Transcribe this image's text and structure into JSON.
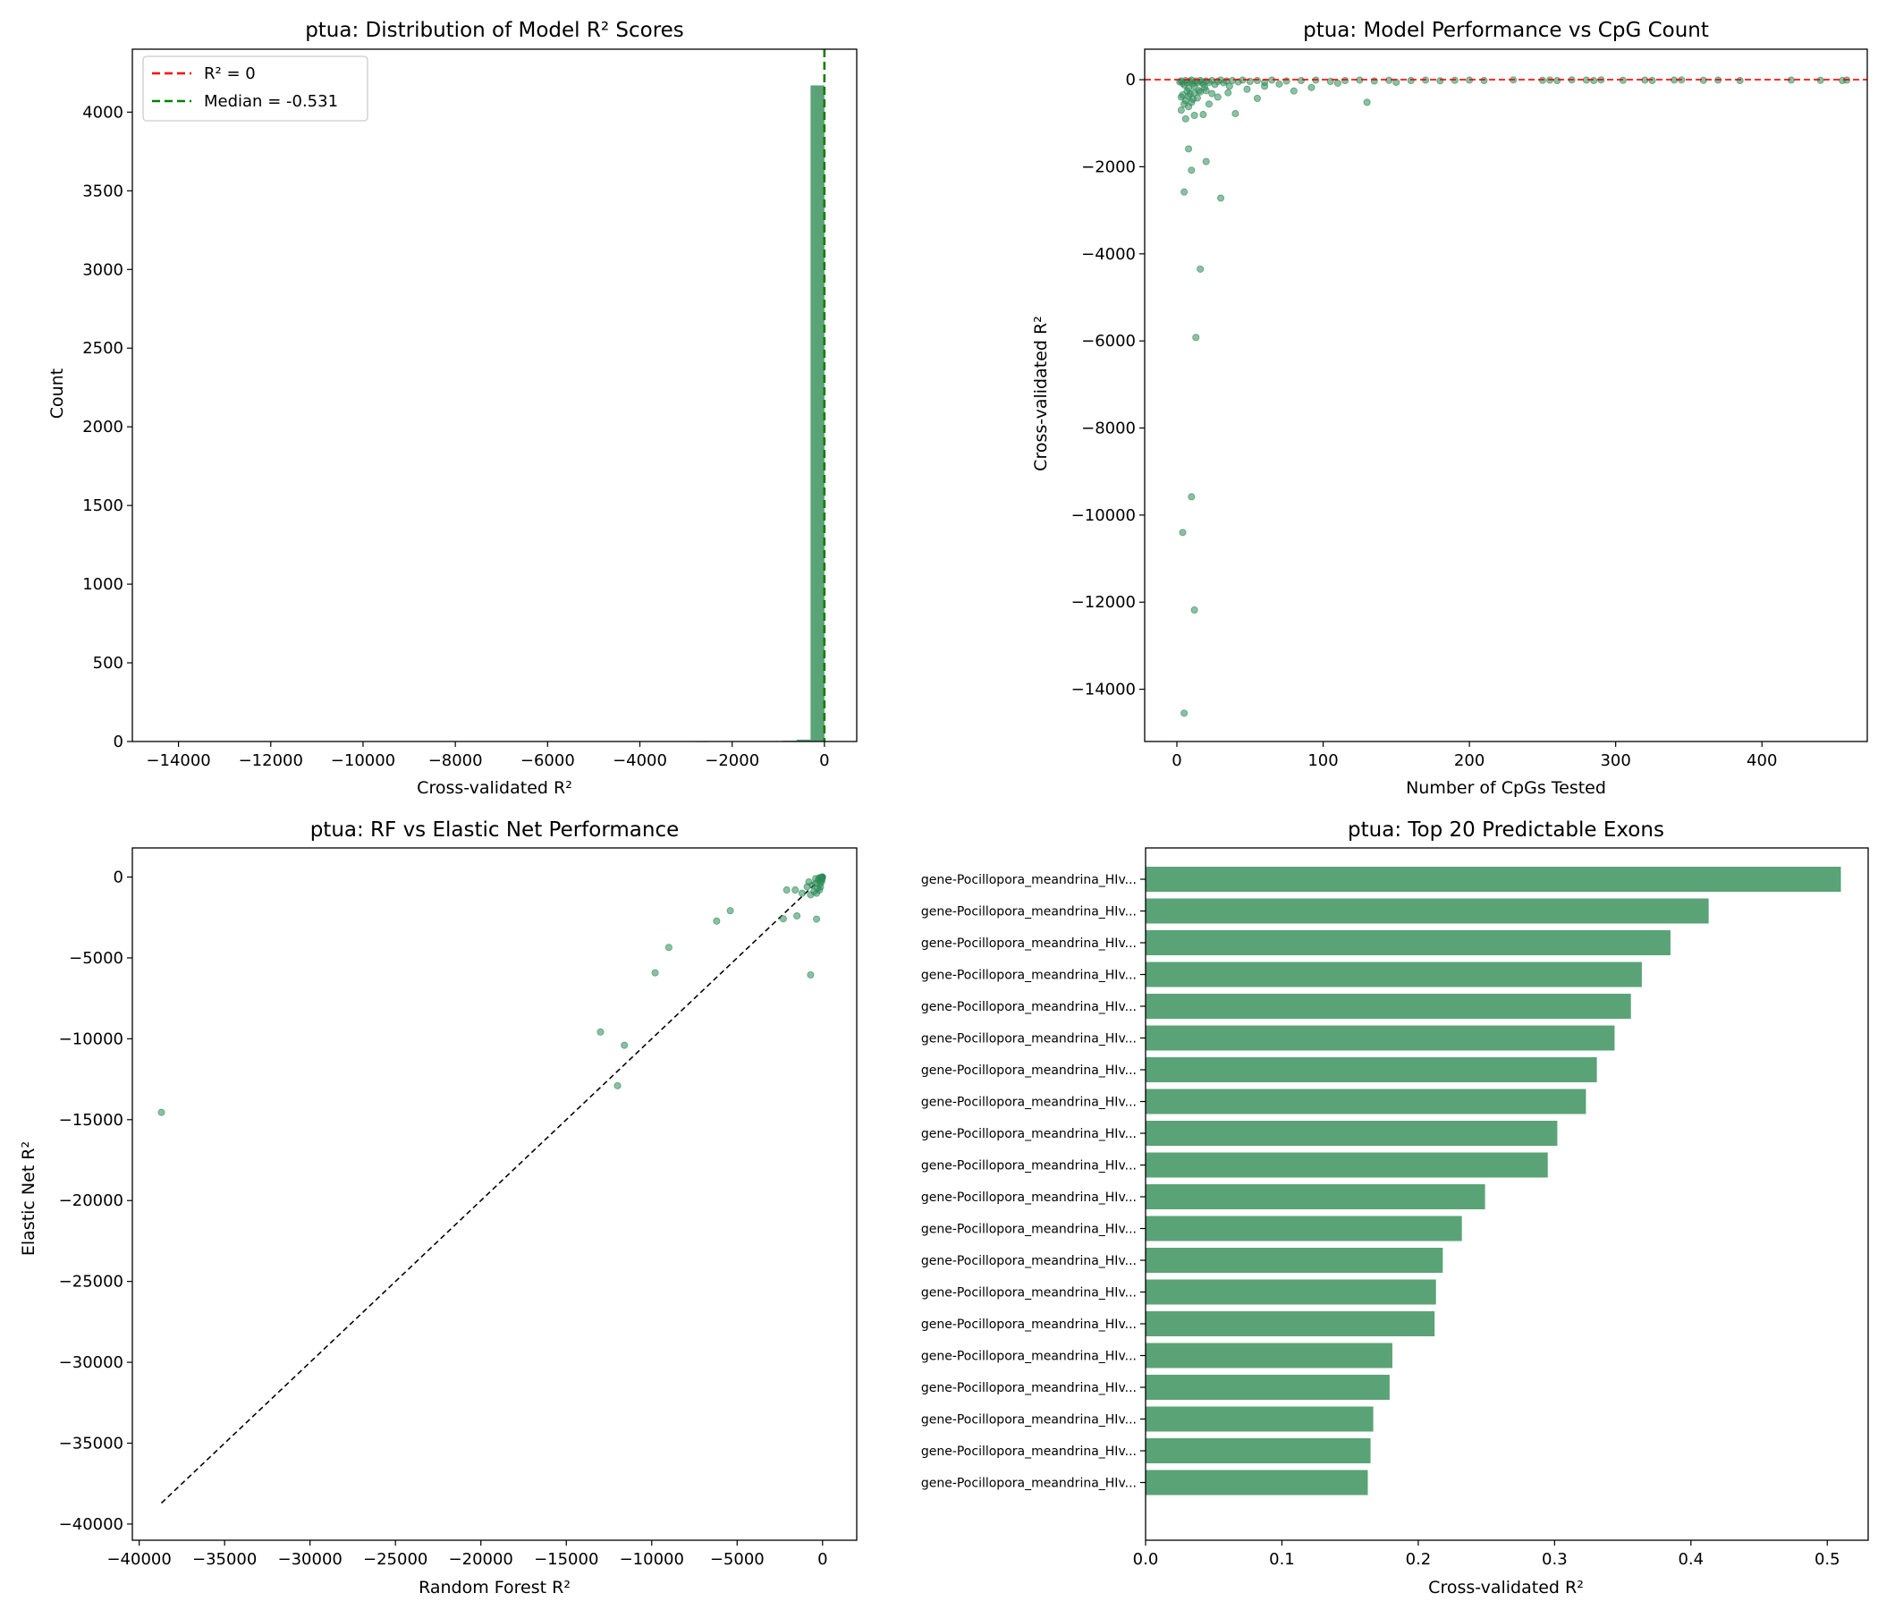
{
  "colors": {
    "accent": "#2e8b57",
    "bar": "#5aa377",
    "zero_line": "#ff0000",
    "median_line": "#008000",
    "diagonal": "#000000"
  },
  "chart_data": [
    {
      "id": "hist",
      "type": "bar",
      "title": "ptua: Distribution of Model R² Scores",
      "xlabel": "Cross-validated R²",
      "ylabel": "Count",
      "xlim": [
        -15000,
        700
      ],
      "ylim": [
        0,
        4400
      ],
      "xticks": [
        -14000,
        -12000,
        -10000,
        -8000,
        -6000,
        -4000,
        -2000,
        0
      ],
      "yticks": [
        0,
        500,
        1000,
        1500,
        2000,
        2500,
        3000,
        3500,
        4000
      ],
      "bins": [
        {
          "x0": -300,
          "x1": 0,
          "count": 4170
        },
        {
          "x0": -600,
          "x1": -300,
          "count": 12
        },
        {
          "x0": -900,
          "x1": -600,
          "count": 5
        },
        {
          "x0": -2800,
          "x1": -2500,
          "count": 2
        }
      ],
      "legend": [
        {
          "label": "R² = 0",
          "color": "#ff0000"
        },
        {
          "label": "Median = -0.531",
          "color": "#008000"
        }
      ],
      "vlines": [
        0,
        -0.531
      ],
      "legend_position": "upper-left"
    },
    {
      "id": "scatter_cpg",
      "type": "scatter",
      "title": "ptua: Model Performance vs CpG Count",
      "xlabel": "Number of CpGs Tested",
      "ylabel": "Cross-validated R²",
      "xlim": [
        -22,
        472
      ],
      "ylim": [
        -15200,
        700
      ],
      "xticks": [
        0,
        100,
        200,
        300,
        400
      ],
      "yticks": [
        0,
        -2000,
        -4000,
        -6000,
        -8000,
        -10000,
        -12000,
        -14000
      ],
      "hline": 0,
      "points": [
        [
          5,
          -14550
        ],
        [
          12,
          -12180
        ],
        [
          4,
          -10400
        ],
        [
          10,
          -9580
        ],
        [
          13,
          -5920
        ],
        [
          16,
          -4350
        ],
        [
          30,
          -2720
        ],
        [
          5,
          -2580
        ],
        [
          10,
          -2080
        ],
        [
          20,
          -1880
        ],
        [
          8,
          -1590
        ],
        [
          130,
          -520
        ],
        [
          55,
          -430
        ],
        [
          80,
          -260
        ],
        [
          92,
          -180
        ],
        [
          40,
          -780
        ],
        [
          18,
          -800
        ],
        [
          12,
          -820
        ],
        [
          6,
          -900
        ],
        [
          3,
          -700
        ],
        [
          8,
          -620
        ],
        [
          22,
          -560
        ],
        [
          28,
          -400
        ],
        [
          35,
          -300
        ],
        [
          48,
          -220
        ],
        [
          60,
          -150
        ],
        [
          70,
          -100
        ],
        [
          110,
          -80
        ],
        [
          150,
          -60
        ],
        [
          2,
          -50
        ],
        [
          3,
          -30
        ],
        [
          4,
          -80
        ],
        [
          5,
          -120
        ],
        [
          6,
          -20
        ],
        [
          7,
          -60
        ],
        [
          8,
          -200
        ],
        [
          9,
          -40
        ],
        [
          10,
          -10
        ],
        [
          11,
          -90
        ],
        [
          12,
          -150
        ],
        [
          13,
          -30
        ],
        [
          14,
          -70
        ],
        [
          15,
          -250
        ],
        [
          16,
          -20
        ],
        [
          17,
          -50
        ],
        [
          18,
          -100
        ],
        [
          19,
          -180
        ],
        [
          20,
          -30
        ],
        [
          22,
          -60
        ],
        [
          24,
          -20
        ],
        [
          26,
          -110
        ],
        [
          28,
          -40
        ],
        [
          30,
          -10
        ],
        [
          32,
          -70
        ],
        [
          34,
          -30
        ],
        [
          36,
          -150
        ],
        [
          38,
          -20
        ],
        [
          42,
          -50
        ],
        [
          45,
          -10
        ],
        [
          50,
          -40
        ],
        [
          55,
          -20
        ],
        [
          60,
          -60
        ],
        [
          65,
          -10
        ],
        [
          75,
          -30
        ],
        [
          85,
          -20
        ],
        [
          95,
          -10
        ],
        [
          105,
          -40
        ],
        [
          115,
          -20
        ],
        [
          125,
          -10
        ],
        [
          135,
          -30
        ],
        [
          145,
          -15
        ],
        [
          160,
          -20
        ],
        [
          170,
          -10
        ],
        [
          180,
          -25
        ],
        [
          190,
          -15
        ],
        [
          200,
          -10
        ],
        [
          210,
          -20
        ],
        [
          230,
          -5
        ],
        [
          250,
          -15
        ],
        [
          255,
          -10
        ],
        [
          260,
          -20
        ],
        [
          270,
          -5
        ],
        [
          280,
          -10
        ],
        [
          285,
          -20
        ],
        [
          290,
          -5
        ],
        [
          305,
          -15
        ],
        [
          320,
          -10
        ],
        [
          325,
          -20
        ],
        [
          340,
          -10
        ],
        [
          345,
          -5
        ],
        [
          360,
          -15
        ],
        [
          370,
          -10
        ],
        [
          385,
          -20
        ],
        [
          420,
          -10
        ],
        [
          440,
          -15
        ],
        [
          455,
          -20
        ],
        [
          458,
          -10
        ],
        [
          4,
          -350
        ],
        [
          6,
          -480
        ],
        [
          8,
          -380
        ],
        [
          10,
          -520
        ],
        [
          12,
          -300
        ],
        [
          14,
          -420
        ],
        [
          16,
          -280
        ],
        [
          20,
          -250
        ],
        [
          24,
          -320
        ],
        [
          7,
          -260
        ],
        [
          9,
          -330
        ],
        [
          11,
          -450
        ],
        [
          3,
          -400
        ],
        [
          5,
          -560
        ]
      ]
    },
    {
      "id": "scatter_rf_en",
      "type": "scatter",
      "title": "ptua: RF vs Elastic Net Performance",
      "xlabel": "Random Forest R²",
      "ylabel": "Elastic Net R²",
      "xlim": [
        -40400,
        2000
      ],
      "ylim": [
        -41000,
        1800
      ],
      "xticks": [
        -40000,
        -35000,
        -30000,
        -25000,
        -20000,
        -15000,
        -10000,
        -5000,
        0
      ],
      "yticks": [
        0,
        -5000,
        -10000,
        -15000,
        -20000,
        -25000,
        -30000,
        -35000,
        -40000
      ],
      "diagonal": [
        -38700,
        0
      ],
      "points": [
        [
          -38700,
          -14550
        ],
        [
          -13000,
          -9580
        ],
        [
          -12000,
          -12900
        ],
        [
          -11600,
          -10400
        ],
        [
          -9800,
          -5920
        ],
        [
          -9000,
          -4350
        ],
        [
          -5400,
          -2080
        ],
        [
          -6200,
          -2720
        ],
        [
          -2300,
          -2580
        ],
        [
          -1500,
          -2400
        ],
        [
          -700,
          -6050
        ],
        [
          -350,
          -2600
        ],
        [
          -2100,
          -800
        ],
        [
          -1600,
          -800
        ],
        [
          -1200,
          -1000
        ],
        [
          -800,
          -300
        ],
        [
          -600,
          -500
        ],
        [
          -500,
          -900
        ],
        [
          -400,
          -100
        ],
        [
          -300,
          -700
        ],
        [
          -250,
          -200
        ],
        [
          -200,
          -50
        ],
        [
          -150,
          -400
        ],
        [
          -100,
          -30
        ],
        [
          -80,
          -150
        ],
        [
          -60,
          -60
        ],
        [
          -40,
          -10
        ],
        [
          -30,
          -20
        ],
        [
          -20,
          -5
        ],
        [
          -10,
          -1
        ],
        [
          -5,
          -2
        ],
        [
          -400,
          -400
        ],
        [
          -900,
          -600
        ],
        [
          -700,
          -1100
        ],
        [
          -350,
          -1000
        ],
        [
          -180,
          -800
        ],
        [
          -120,
          -600
        ],
        [
          -60,
          -300
        ],
        [
          -30,
          -150
        ]
      ]
    },
    {
      "id": "top_exons",
      "type": "bar",
      "orientation": "horizontal",
      "title": "ptua: Top 20 Predictable Exons",
      "xlabel": "Cross-validated R²",
      "xlim": [
        0,
        0.53
      ],
      "xticks": [
        "0.0",
        "0.1",
        "0.2",
        "0.3",
        "0.4",
        "0.5"
      ],
      "categories": [
        "gene-Pocillopora_meandrina_HIv...",
        "gene-Pocillopora_meandrina_HIv...",
        "gene-Pocillopora_meandrina_HIv...",
        "gene-Pocillopora_meandrina_HIv...",
        "gene-Pocillopora_meandrina_HIv...",
        "gene-Pocillopora_meandrina_HIv...",
        "gene-Pocillopora_meandrina_HIv...",
        "gene-Pocillopora_meandrina_HIv...",
        "gene-Pocillopora_meandrina_HIv...",
        "gene-Pocillopora_meandrina_HIv...",
        "gene-Pocillopora_meandrina_HIv...",
        "gene-Pocillopora_meandrina_HIv...",
        "gene-Pocillopora_meandrina_HIv...",
        "gene-Pocillopora_meandrina_HIv...",
        "gene-Pocillopora_meandrina_HIv...",
        "gene-Pocillopora_meandrina_HIv...",
        "gene-Pocillopora_meandrina_HIv...",
        "gene-Pocillopora_meandrina_HIv...",
        "gene-Pocillopora_meandrina_HIv...",
        "gene-Pocillopora_meandrina_HIv..."
      ],
      "values": [
        0.51,
        0.413,
        0.385,
        0.364,
        0.356,
        0.344,
        0.331,
        0.323,
        0.302,
        0.295,
        0.249,
        0.232,
        0.218,
        0.213,
        0.212,
        0.181,
        0.179,
        0.167,
        0.165,
        0.163
      ]
    }
  ]
}
